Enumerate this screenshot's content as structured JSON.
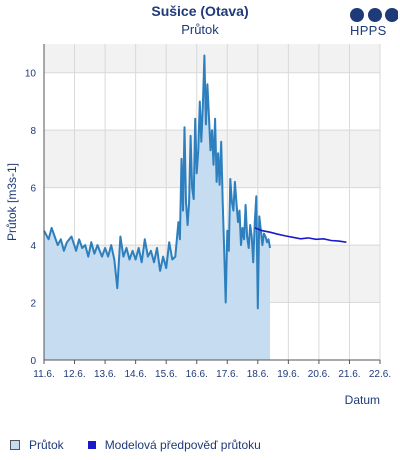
{
  "header": {
    "title": "Sušice (Otava)",
    "subtitle": "Průtok",
    "logo_text": "HPPS"
  },
  "colors": {
    "observed_fill": "#c6dcf1",
    "observed_line": "#2e7fbd",
    "forecast_line": "#1a1acc",
    "band": "#f2f2f2",
    "grid": "#d9d9d9",
    "text": "#1f3a78"
  },
  "legend": [
    {
      "label": "Průtok",
      "icon": "observed-swatch-icon"
    },
    {
      "label": "Modelová předpověď průtoku",
      "icon": "forecast-swatch-icon"
    }
  ],
  "chart_data": {
    "type": "area",
    "title": "Sušice (Otava)",
    "subtitle": "Průtok",
    "xlabel": "Datum",
    "ylabel": "Průtok [m3s-1]",
    "xlim": [
      11.6,
      22.6
    ],
    "ylim": [
      0,
      11
    ],
    "y_ticks": [
      0,
      2,
      4,
      6,
      8,
      10
    ],
    "x_tick_labels": [
      "11.6.",
      "12.6.",
      "13.6.",
      "14.6.",
      "15.6.",
      "16.6.",
      "17.6.",
      "18.6.",
      "19.6.",
      "20.6.",
      "21.6.",
      "22.6."
    ],
    "grid": true,
    "legend_position": "bottom",
    "series": [
      {
        "name": "Průtok",
        "x": [
          11.6,
          11.75,
          11.85,
          11.95,
          12.05,
          12.15,
          12.25,
          12.35,
          12.5,
          12.65,
          12.75,
          12.85,
          12.95,
          13.05,
          13.15,
          13.25,
          13.35,
          13.5,
          13.6,
          13.7,
          13.8,
          13.9,
          14.0,
          14.1,
          14.2,
          14.3,
          14.4,
          14.5,
          14.6,
          14.7,
          14.8,
          14.9,
          15.0,
          15.1,
          15.2,
          15.3,
          15.4,
          15.5,
          15.6,
          15.7,
          15.8,
          15.9,
          16.0,
          16.05,
          16.1,
          16.15,
          16.2,
          16.25,
          16.3,
          16.35,
          16.4,
          16.45,
          16.5,
          16.55,
          16.6,
          16.65,
          16.7,
          16.75,
          16.8,
          16.85,
          16.9,
          16.95,
          17.0,
          17.05,
          17.1,
          17.15,
          17.2,
          17.25,
          17.3,
          17.35,
          17.4,
          17.45,
          17.5,
          17.55,
          17.6,
          17.65,
          17.7,
          17.75,
          17.8,
          17.85,
          17.9,
          17.95,
          18.0,
          18.05,
          18.1,
          18.15,
          18.2,
          18.25,
          18.3,
          18.35,
          18.4,
          18.45,
          18.5,
          18.55,
          18.6,
          18.65,
          18.7,
          18.75,
          18.8,
          18.85,
          18.9,
          18.95,
          19.0
        ],
        "y": [
          4.5,
          4.2,
          4.6,
          4.3,
          4.0,
          4.2,
          3.8,
          4.1,
          4.3,
          3.8,
          4.2,
          3.9,
          4.0,
          3.6,
          4.1,
          3.7,
          4.0,
          3.6,
          3.9,
          3.6,
          4.0,
          3.5,
          2.5,
          4.3,
          3.6,
          3.9,
          3.5,
          3.8,
          3.5,
          3.9,
          3.4,
          4.2,
          3.6,
          3.8,
          3.4,
          3.9,
          3.1,
          3.6,
          3.2,
          4.1,
          3.5,
          3.6,
          4.8,
          4.2,
          7.0,
          5.2,
          8.1,
          5.5,
          4.7,
          5.5,
          7.8,
          6.0,
          5.6,
          8.4,
          6.5,
          7.3,
          9.0,
          7.6,
          8.8,
          10.6,
          8.2,
          9.6,
          8.5,
          7.3,
          8.0,
          6.8,
          8.4,
          6.2,
          7.2,
          6.1,
          7.6,
          5.5,
          3.8,
          2.0,
          4.5,
          3.8,
          6.3,
          5.5,
          5.2,
          6.2,
          5.5,
          4.8,
          5.2,
          4.0,
          4.6,
          4.2,
          5.4,
          4.3,
          3.9,
          4.7,
          4.3,
          3.4,
          4.8,
          5.7,
          1.8,
          5.0,
          4.5,
          4.0,
          4.4,
          4.3,
          4.1,
          4.2,
          3.9
        ]
      },
      {
        "name": "Modelová předpověď průtoku",
        "x": [
          18.5,
          18.75,
          19.0,
          19.25,
          19.5,
          19.75,
          20.0,
          20.25,
          20.5,
          20.75,
          21.0,
          21.25,
          21.5
        ],
        "y": [
          4.6,
          4.5,
          4.45,
          4.38,
          4.32,
          4.27,
          4.22,
          4.25,
          4.2,
          4.22,
          4.16,
          4.14,
          4.1
        ]
      }
    ]
  }
}
